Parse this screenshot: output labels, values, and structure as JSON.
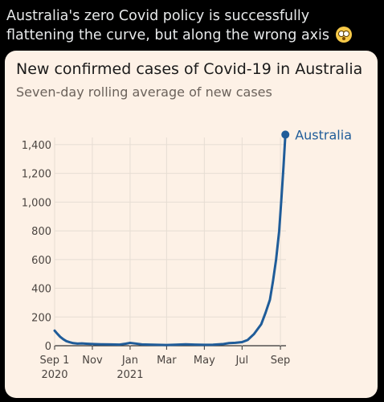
{
  "tweet": {
    "text": "Australia's zero Covid policy is successfully flattening the curve, but along the wrong axis",
    "emoji": "flushed-face"
  },
  "colors": {
    "background": "#000000",
    "card": "#fdf1e6",
    "line": "#1f5c99",
    "grid": "#e6ddd3",
    "axis": "#333333"
  },
  "chart_data": {
    "type": "line",
    "title": "New confirmed cases of Covid-19 in Australia",
    "subtitle": "Seven-day rolling average of new cases",
    "xlabel": "",
    "ylabel": "",
    "ylim": [
      0,
      1450
    ],
    "yticks": [
      0,
      200,
      400,
      600,
      800,
      1000,
      1200,
      1400
    ],
    "ytick_labels": [
      "0",
      "200",
      "400",
      "600",
      "800",
      "1,000",
      "1,200",
      "1,400"
    ],
    "xlim": [
      "2020-09-01",
      "2021-09-10"
    ],
    "xticks": [
      "2020-09-01",
      "2020-11-01",
      "2021-01-01",
      "2021-03-01",
      "2021-05-01",
      "2021-07-01",
      "2021-09-01"
    ],
    "xtick_labels": [
      {
        "line1": "Sep 1",
        "line2": "2020"
      },
      {
        "line1": "Nov",
        "line2": ""
      },
      {
        "line1": "Jan",
        "line2": "2021"
      },
      {
        "line1": "Mar",
        "line2": ""
      },
      {
        "line1": "May",
        "line2": ""
      },
      {
        "line1": "Jul",
        "line2": ""
      },
      {
        "line1": "Sep",
        "line2": ""
      }
    ],
    "grid": true,
    "series": [
      {
        "name": "Australia",
        "x": [
          "2020-09-01",
          "2020-09-05",
          "2020-09-10",
          "2020-09-15",
          "2020-09-20",
          "2020-09-25",
          "2020-10-01",
          "2020-10-08",
          "2020-10-15",
          "2020-10-22",
          "2020-11-01",
          "2020-11-15",
          "2020-12-01",
          "2020-12-15",
          "2020-12-25",
          "2021-01-01",
          "2021-01-10",
          "2021-01-20",
          "2021-02-01",
          "2021-02-15",
          "2021-03-01",
          "2021-03-15",
          "2021-04-01",
          "2021-04-15",
          "2021-05-01",
          "2021-05-15",
          "2021-06-01",
          "2021-06-10",
          "2021-06-20",
          "2021-07-01",
          "2021-07-10",
          "2021-07-20",
          "2021-08-01",
          "2021-08-08",
          "2021-08-15",
          "2021-08-20",
          "2021-08-25",
          "2021-08-30",
          "2021-09-03",
          "2021-09-06",
          "2021-09-09"
        ],
        "y": [
          105,
          85,
          62,
          45,
          32,
          25,
          18,
          15,
          16,
          14,
          12,
          10,
          9,
          8,
          14,
          20,
          15,
          9,
          8,
          6,
          5,
          7,
          10,
          8,
          6,
          7,
          12,
          18,
          20,
          25,
          40,
          80,
          150,
          230,
          320,
          450,
          600,
          800,
          1050,
          1250,
          1470
        ]
      }
    ]
  }
}
